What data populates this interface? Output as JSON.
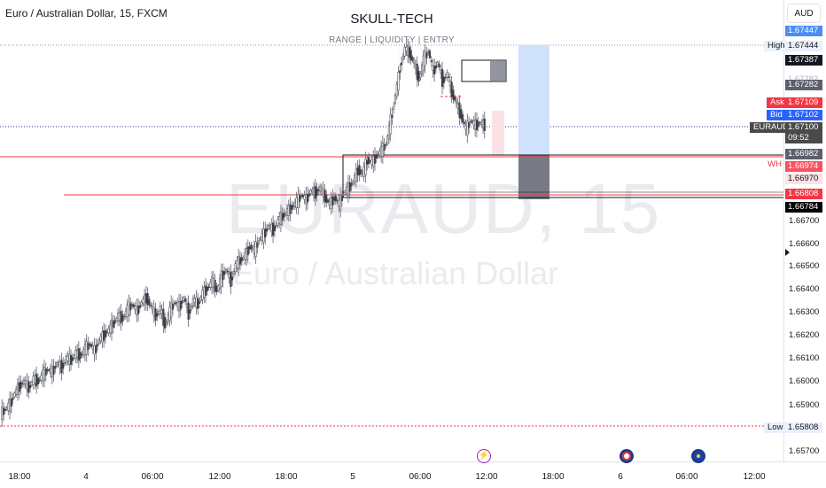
{
  "header": {
    "symbol_title": "Euro / Australian Dollar, 15, FXCM",
    "brand_title": "SKULL-TECH",
    "brand_subtitle": "RANGE  | LIQUIDITY  |  ENTRY"
  },
  "watermark": {
    "symbol": "EURAUD, 15",
    "name": "Euro / Australian Dollar"
  },
  "axis": {
    "currency": "AUD",
    "ticks": [
      "1.66700",
      "1.66600",
      "1.66500",
      "1.66400",
      "1.66300",
      "1.66200",
      "1.66100",
      "1.66000",
      "1.65900",
      "1.65700"
    ],
    "labels": {
      "high_tag": "High",
      "high_value": "1.67444",
      "top_blue": "1.67447",
      "top_dark": "1.67387",
      "ghost": "1.67282",
      "grey_dark": "1.67282",
      "ask_tag": "Ask",
      "ask_value": "1.67109",
      "bid_tag": "Bid",
      "bid_value": "1.67102",
      "symbol_tag": "EURAUD",
      "last_price": "1.67100",
      "countdown": "09:52",
      "grey_a": "1.66982",
      "wh_tag": "WH",
      "wh_value": "1.66974",
      "pink_value": "1.66970",
      "red_value": "1.66808",
      "black_value": "1.66784",
      "low_tag": "Low",
      "low_value": "1.65808"
    }
  },
  "time_axis": [
    "18:00",
    "4",
    "06:00",
    "12:00",
    "18:00",
    "5",
    "06:00",
    "12:00",
    "18:00",
    "6",
    "06:00",
    "12:00"
  ],
  "events": [
    "lightning-event",
    "australia-flag-event",
    "eu-flag-event"
  ],
  "colors": {
    "up": "#4a4a4a",
    "down": "#4a4a4a",
    "red_line": "#f23645",
    "blue": "#2962ff",
    "wh_red": "#f7525f"
  },
  "chart_data": {
    "type": "candlestick",
    "symbol": "EURAUD",
    "timeframe": "15",
    "ylim": [
      1.657,
      1.6751
    ],
    "x_ticks": [
      "18:00",
      "4",
      "06:00",
      "12:00",
      "18:00",
      "5",
      "06:00",
      "12:00",
      "18:00",
      "6",
      "06:00",
      "12:00"
    ],
    "high": 1.67444,
    "low": 1.65808,
    "last": 1.671,
    "ask": 1.67109,
    "bid": 1.67102,
    "levels": {
      "wh": 1.66974,
      "red_line_1": 1.66974,
      "red_line_2": 1.66808
    },
    "close_path": [
      1.6588,
      1.659,
      1.6595,
      1.6598,
      1.66,
      1.6597,
      1.6601,
      1.66,
      1.6603,
      1.6605,
      1.6604,
      1.6608,
      1.6606,
      1.661,
      1.6609,
      1.6612,
      1.6611,
      1.6614,
      1.6616,
      1.6613,
      1.6618,
      1.662,
      1.6622,
      1.6625,
      1.6628,
      1.6627,
      1.6631,
      1.6633,
      1.663,
      1.6634,
      1.6636,
      1.6632,
      1.6628,
      1.6631,
      1.6624,
      1.663,
      1.6634,
      1.6632,
      1.6636,
      1.6629,
      1.6635,
      1.6633,
      1.6638,
      1.664,
      1.6643,
      1.6639,
      1.6645,
      1.6648,
      1.6643,
      1.665,
      1.6652,
      1.6654,
      1.6658,
      1.6656,
      1.6661,
      1.6663,
      1.6667,
      1.6665,
      1.6669,
      1.6671,
      1.6673,
      1.6675,
      1.6677,
      1.668,
      1.6678,
      1.6682,
      1.6681,
      1.6683,
      1.6679,
      1.6676,
      1.6679,
      1.6676,
      1.6681,
      1.6683,
      1.6686,
      1.6691,
      1.6689,
      1.6695,
      1.6694,
      1.6697,
      1.6699,
      1.6702,
      1.6712,
      1.6723,
      1.6735,
      1.6743,
      1.6741,
      1.6736,
      1.673,
      1.6738,
      1.6742,
      1.6733,
      1.6737,
      1.6729,
      1.6732,
      1.6724,
      1.6719,
      1.6714,
      1.6708,
      1.6712,
      1.671,
      1.6711,
      1.671
    ]
  }
}
